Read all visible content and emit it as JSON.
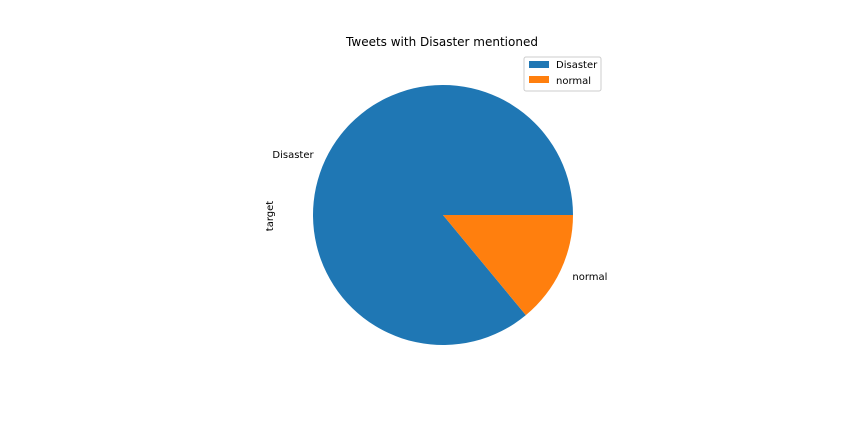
{
  "chart_data": {
    "type": "pie",
    "title": "Tweets with Disaster mentioned",
    "ylabel": "target",
    "categories": [
      "Disaster",
      "normal"
    ],
    "values": [
      86,
      14
    ],
    "colors": [
      "#1f77b4",
      "#ff7f0e"
    ],
    "start_angle_deg": 0,
    "direction": "counterclockwise",
    "legend_placement": "upper-right"
  }
}
